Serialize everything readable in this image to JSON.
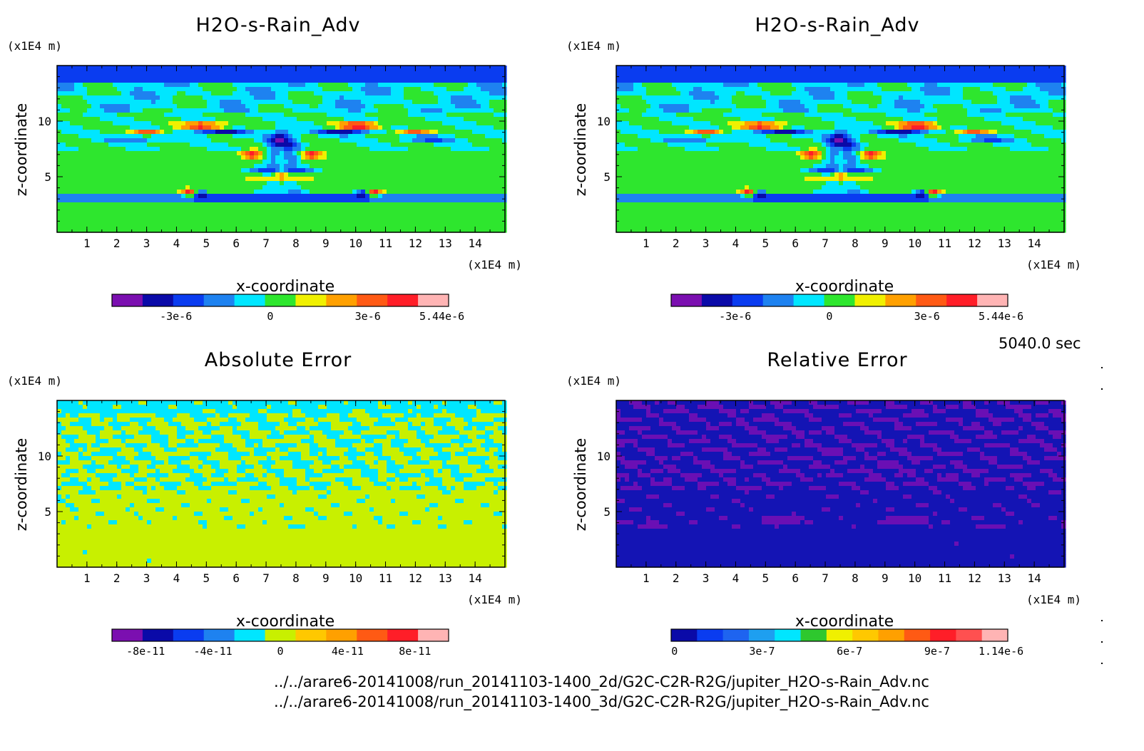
{
  "panels": [
    {
      "id": "p1",
      "title": "H2O-s-Rain_Adv",
      "xlabel": "x-coordinate",
      "ylabel": "z-coordinate",
      "unit_z": "(x1E4 m)",
      "unit_x": "(x1E4 m)",
      "field": "tracer",
      "x_ticks": [
        "1",
        "2",
        "3",
        "4",
        "5",
        "6",
        "7",
        "8",
        "9",
        "10",
        "11",
        "12",
        "13",
        "14"
      ],
      "z_ticks": [
        "5",
        "10"
      ],
      "colorbar": {
        "colors": [
          "#7b0fb0",
          "#0a0aa8",
          "#0a3cf0",
          "#1e82f0",
          "#00e6ff",
          "#2ee62e",
          "#f0f000",
          "#ffa000",
          "#ff5a14",
          "#ff1e28",
          "#ffb4b4"
        ],
        "labels": [
          "-3e-6",
          "0",
          "3e-6",
          "5.44e-6"
        ]
      }
    },
    {
      "id": "p2",
      "title": "H2O-s-Rain_Adv",
      "xlabel": "x-coordinate",
      "ylabel": "z-coordinate",
      "unit_z": "(x1E4 m)",
      "unit_x": "(x1E4 m)",
      "field": "tracer",
      "x_ticks": [
        "1",
        "2",
        "3",
        "4",
        "5",
        "6",
        "7",
        "8",
        "9",
        "10",
        "11",
        "12",
        "13",
        "14"
      ],
      "z_ticks": [
        "5",
        "10"
      ],
      "colorbar": {
        "colors": [
          "#7b0fb0",
          "#0a0aa8",
          "#0a3cf0",
          "#1e82f0",
          "#00e6ff",
          "#2ee62e",
          "#f0f000",
          "#ffa000",
          "#ff5a14",
          "#ff1e28",
          "#ffb4b4"
        ],
        "labels": [
          "-3e-6",
          "0",
          "3e-6",
          "5.44e-6"
        ]
      }
    },
    {
      "id": "p3",
      "title": "Absolute Error",
      "xlabel": "x-coordinate",
      "ylabel": "z-coordinate",
      "unit_z": "(x1E4 m)",
      "unit_x": "(x1E4 m)",
      "field": "abs",
      "x_ticks": [
        "1",
        "2",
        "3",
        "4",
        "5",
        "6",
        "7",
        "8",
        "9",
        "10",
        "11",
        "12",
        "13",
        "14"
      ],
      "z_ticks": [
        "5",
        "10"
      ],
      "colorbar": {
        "colors": [
          "#7b0fb0",
          "#0a0aa8",
          "#0a3cf0",
          "#1e82f0",
          "#00e6ff",
          "#c8f000",
          "#ffc800",
          "#ffa000",
          "#ff5a14",
          "#ff1e28",
          "#ffb4b4"
        ],
        "labels": [
          "-8e-11",
          "-4e-11",
          "0",
          "4e-11",
          "8e-11"
        ]
      }
    },
    {
      "id": "p4",
      "title": "Relative Error",
      "xlabel": "x-coordinate",
      "ylabel": "z-coordinate",
      "unit_z": "(x1E4 m)",
      "unit_x": "(x1E4 m)",
      "field": "rel",
      "x_ticks": [
        "1",
        "2",
        "3",
        "4",
        "5",
        "6",
        "7",
        "8",
        "9",
        "10",
        "11",
        "12",
        "13",
        "14"
      ],
      "z_ticks": [
        "5",
        "10"
      ],
      "colorbar": {
        "colors": [
          "#0a0aa8",
          "#0a3cf0",
          "#1e64f0",
          "#1e9ff0",
          "#00e6ff",
          "#2ec82e",
          "#f0f000",
          "#ffc800",
          "#ffa000",
          "#ff5a14",
          "#ff1e28",
          "#ff5050",
          "#ffb4b4"
        ],
        "labels": [
          "0",
          "3e-7",
          "6e-7",
          "9e-7",
          "1.14e-6"
        ]
      }
    }
  ],
  "time_label": "5040.0 sec",
  "files": [
    "../../arare6-20141008/run_20141103-1400_2d/G2C-C2R-R2G/jupiter_H2O-s-Rain_Adv.nc",
    "../../arare6-20141008/run_20141103-1400_3d/G2C-C2R-R2G/jupiter_H2O-s-Rain_Adv.nc"
  ],
  "chart_data": [
    {
      "type": "heatmap",
      "title": "H2O-s-Rain_Adv",
      "xlabel": "x-coordinate (x1E4 m)",
      "ylabel": "z-coordinate (x1E4 m)",
      "xlim": [
        0,
        15
      ],
      "ylim": [
        0,
        15
      ],
      "x_ticks": [
        1,
        2,
        3,
        4,
        5,
        6,
        7,
        8,
        9,
        10,
        11,
        12,
        13,
        14
      ],
      "z_ticks": [
        5,
        10
      ],
      "color_range": [
        -5.44e-06,
        5.44e-06
      ],
      "colorbar_ticks": [
        -3e-06,
        0,
        3e-06,
        5.44e-06
      ]
    },
    {
      "type": "heatmap",
      "title": "H2O-s-Rain_Adv",
      "xlabel": "x-coordinate (x1E4 m)",
      "ylabel": "z-coordinate (x1E4 m)",
      "xlim": [
        0,
        15
      ],
      "ylim": [
        0,
        15
      ],
      "x_ticks": [
        1,
        2,
        3,
        4,
        5,
        6,
        7,
        8,
        9,
        10,
        11,
        12,
        13,
        14
      ],
      "z_ticks": [
        5,
        10
      ],
      "color_range": [
        -5.44e-06,
        5.44e-06
      ],
      "colorbar_ticks": [
        -3e-06,
        0,
        3e-06,
        5.44e-06
      ]
    },
    {
      "type": "heatmap",
      "title": "Absolute Error",
      "xlabel": "x-coordinate (x1E4 m)",
      "ylabel": "z-coordinate (x1E4 m)",
      "xlim": [
        0,
        15
      ],
      "ylim": [
        0,
        15
      ],
      "x_ticks": [
        1,
        2,
        3,
        4,
        5,
        6,
        7,
        8,
        9,
        10,
        11,
        12,
        13,
        14
      ],
      "z_ticks": [
        5,
        10
      ],
      "color_range": [
        -1.1e-10,
        1.1e-10
      ],
      "colorbar_ticks": [
        -8e-11,
        -4e-11,
        0,
        4e-11,
        8e-11
      ]
    },
    {
      "type": "heatmap",
      "title": "Relative Error",
      "xlabel": "x-coordinate (x1E4 m)",
      "ylabel": "z-coordinate (x1E4 m)",
      "xlim": [
        0,
        15
      ],
      "ylim": [
        0,
        15
      ],
      "x_ticks": [
        1,
        2,
        3,
        4,
        5,
        6,
        7,
        8,
        9,
        10,
        11,
        12,
        13,
        14
      ],
      "z_ticks": [
        5,
        10
      ],
      "color_range": [
        0,
        1.14e-06
      ],
      "colorbar_ticks": [
        0,
        3e-07,
        6e-07,
        9e-07,
        1.14e-06
      ]
    }
  ]
}
